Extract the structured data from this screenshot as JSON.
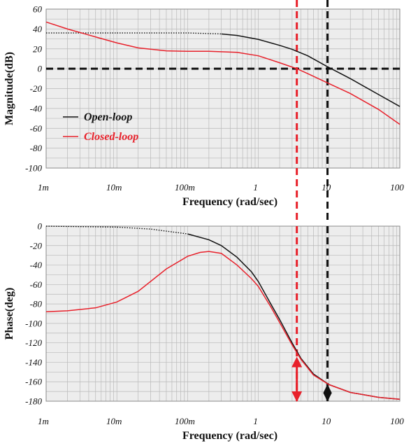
{
  "colors": {
    "open_loop": "#111111",
    "closed_loop": "#e8212b",
    "panel_background": "#ededed",
    "grid": "#b9b9b9"
  },
  "chart_data": [
    {
      "type": "line",
      "xscale": "log",
      "xlim": [
        0.001,
        100
      ],
      "ylim": [
        -100,
        60
      ],
      "xlabel": "Frequency (rad/sec)",
      "ylabel": "Magnitude(dB)",
      "x_ticks": [
        "1m",
        "10m",
        "100m",
        "1",
        "10",
        "100"
      ],
      "y_ticks": [
        "60",
        "40",
        "20",
        "0",
        "-20",
        "-40",
        "-60",
        "-80",
        "-100"
      ],
      "grid": true,
      "legend": {
        "position": "middle-left",
        "entries": [
          "Open-loop",
          "Closed-loop"
        ]
      },
      "series": [
        {
          "name": "Open-loop",
          "color": "#111111",
          "style": "dotted at low frequency, solid above about 0.3 rad/s",
          "x": [
            0.001,
            0.01,
            0.1,
            0.3,
            0.5,
            1,
            2,
            3,
            5,
            9.5,
            20,
            50,
            100
          ],
          "y": [
            36,
            36,
            36,
            35,
            33.5,
            29.5,
            23.5,
            19.5,
            13,
            2,
            -10,
            -26,
            -38
          ]
        },
        {
          "name": "Closed-loop",
          "color": "#e8212b",
          "x": [
            0.001,
            0.002,
            0.005,
            0.01,
            0.02,
            0.05,
            0.1,
            0.2,
            0.5,
            1,
            2,
            3.5,
            5,
            10,
            20,
            50,
            100
          ],
          "y": [
            47,
            40,
            32,
            26,
            21,
            18,
            17.5,
            17.5,
            16.5,
            13,
            6,
            0,
            -5,
            -15,
            -25,
            -41,
            -56
          ]
        }
      ],
      "reference_lines": [
        {
          "orientation": "horizontal",
          "y": 0,
          "color": "#111111",
          "style": "dashed"
        },
        {
          "orientation": "vertical",
          "x": 3.5,
          "color": "#e8212b",
          "style": "dashed"
        },
        {
          "orientation": "vertical",
          "x": 9.5,
          "color": "#111111",
          "style": "dashed"
        }
      ]
    },
    {
      "type": "line",
      "xscale": "log",
      "xlim": [
        0.001,
        100
      ],
      "ylim": [
        -180,
        0
      ],
      "xlabel": "Frequency (rad/sec)",
      "ylabel": "Phase(deg)",
      "x_ticks": [
        "1m",
        "10m",
        "100m",
        "1",
        "10",
        "100"
      ],
      "y_ticks": [
        "0",
        "-20",
        "-40",
        "-60",
        "-80",
        "-100",
        "-120",
        "-140",
        "-160",
        "-180"
      ],
      "grid": true,
      "series": [
        {
          "name": "Open-loop",
          "color": "#111111",
          "style": "dotted at low frequency, solid above about 0.1 rad/s",
          "x": [
            0.001,
            0.003,
            0.01,
            0.03,
            0.1,
            0.2,
            0.3,
            0.5,
            0.8,
            1,
            1.5,
            2,
            3,
            4,
            6,
            10,
            20,
            50,
            100
          ],
          "y": [
            0,
            -0.5,
            -1,
            -3,
            -8,
            -14,
            -20,
            -32,
            -47,
            -57,
            -80,
            -96,
            -120,
            -136,
            -152,
            -163,
            -171,
            -176,
            -178
          ]
        },
        {
          "name": "Closed-loop",
          "color": "#e8212b",
          "x": [
            0.001,
            0.002,
            0.005,
            0.01,
            0.02,
            0.05,
            0.1,
            0.15,
            0.2,
            0.3,
            0.5,
            0.8,
            1,
            1.5,
            2,
            3,
            4,
            6,
            10,
            20,
            50,
            100
          ],
          "y": [
            -88,
            -87,
            -84,
            -78,
            -67,
            -44,
            -31,
            -27,
            -26,
            -28,
            -40,
            -54,
            -62,
            -83,
            -99,
            -122,
            -137,
            -153,
            -163,
            -171,
            -176,
            -178
          ]
        }
      ],
      "reference_lines": [
        {
          "orientation": "vertical",
          "x": 3.5,
          "color": "#e8212b",
          "style": "dashed"
        },
        {
          "orientation": "vertical",
          "x": 9.5,
          "color": "#111111",
          "style": "dashed"
        }
      ],
      "annotations": [
        {
          "type": "double-arrow",
          "x": 3.5,
          "y_from": -180,
          "y_to": -135,
          "color": "#e8212b"
        },
        {
          "type": "double-arrow",
          "x": 9.5,
          "y_from": -180,
          "y_to": -163,
          "color": "#111111"
        }
      ]
    }
  ]
}
